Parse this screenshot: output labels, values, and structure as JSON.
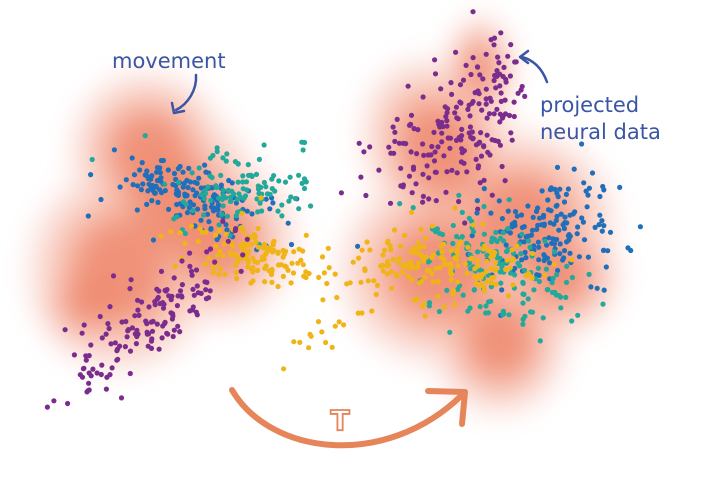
{
  "labels": {
    "left": "movement",
    "right_line1": "projected",
    "right_line2": "neural data",
    "transform": "T"
  },
  "colors": {
    "label_text": "#3a55a4",
    "density_core": "#ef8a6e",
    "density_edge": "#fbe1dc",
    "arrow": "#e58559",
    "purple": "#7b2d8e",
    "blue": "#1f6fba",
    "teal": "#22a99b",
    "yellow": "#efb417"
  },
  "clusters": [
    "purple",
    "blue",
    "teal",
    "yellow"
  ]
}
